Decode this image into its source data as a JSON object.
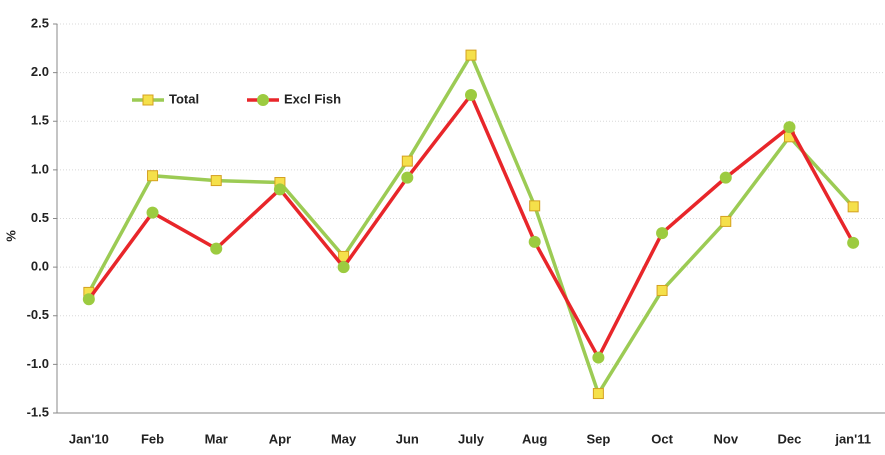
{
  "chart_data": {
    "type": "line",
    "ylabel": "%",
    "categories": [
      "Jan'10",
      "Feb",
      "Mar",
      "Apr",
      "May",
      "Jun",
      "July",
      "Aug",
      "Sep",
      "Oct",
      "Nov",
      "Dec",
      "jan'11"
    ],
    "series": [
      {
        "name": "Total",
        "color": "#9ccb54",
        "marker": "square",
        "marker_color": "#f5e04a",
        "values": [
          -0.26,
          0.94,
          0.89,
          0.87,
          0.11,
          1.09,
          2.18,
          0.63,
          -1.3,
          -0.24,
          0.47,
          1.34,
          0.62
        ]
      },
      {
        "name": "Excl Fish",
        "color": "#e8262a",
        "marker": "circle",
        "marker_color": "#9ccb40",
        "values": [
          -0.33,
          0.56,
          0.19,
          0.8,
          0.0,
          0.92,
          1.77,
          0.26,
          -0.93,
          0.35,
          0.92,
          1.44,
          0.25
        ]
      }
    ],
    "ylim": [
      -1.5,
      2.5
    ],
    "yticks": [
      -1.5,
      {
        "value": -1,
        "label": "-1.0"
      },
      -0.5,
      {
        "value": 0,
        "label": "0.0"
      },
      0.5,
      {
        "value": 1,
        "label": "1.0"
      },
      1.5,
      {
        "value": 2,
        "label": "2.0"
      },
      2.5
    ],
    "grid": true,
    "legend": "upper left"
  }
}
